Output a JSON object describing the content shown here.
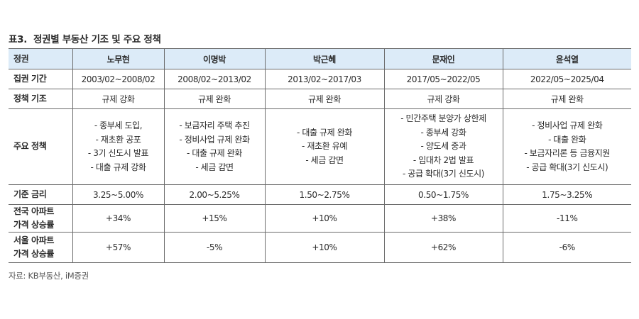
{
  "title": {
    "number": "표3.",
    "text": "정권별 부동산 기조 및 주요 정책"
  },
  "table": {
    "corner_header": "정권",
    "administrations": [
      "노무현",
      "이명박",
      "박근혜",
      "문재인",
      "윤석열"
    ],
    "rows": {
      "period": {
        "label": "집권 기간",
        "values": [
          "2003/02~2008/02",
          "2008/02~2013/02",
          "2013/02~2017/03",
          "2017/05~2022/05",
          "2022/05~2025/04"
        ]
      },
      "basis": {
        "label": "정책 기조",
        "values": [
          "규제 강화",
          "규제 완화",
          "규제 완화",
          "규제 강화",
          "규제 완화"
        ]
      },
      "policies": {
        "label": "주요 정책",
        "values": [
          [
            "- 종부세 도입,",
            "- 재초환 공포",
            "- 3기 신도시 발표",
            "- 대출 규제 강화"
          ],
          [
            "- 보금자리 주택 추진",
            "- 정비사업 규제 완화",
            "- 대출 규제 완화",
            "- 세금 감면"
          ],
          [
            "- 대출 규제 완화",
            "- 재초환 유예",
            "- 세금 감면"
          ],
          [
            "- 민간주택 분양가 상한제",
            "- 종부세 강화",
            "- 양도세 중과",
            "- 임대차 2법 발표",
            "- 공급 확대(3기 신도시)"
          ],
          [
            "- 정비사업 규제 완화",
            "- 대출 완화",
            "- 보금자리론 등 금융지원",
            "- 공급 확대(3기 신도시)"
          ]
        ]
      },
      "rate": {
        "label": "기준 금리",
        "values": [
          "3.25~5.00%",
          "2.00~5.25%",
          "1.50~2.75%",
          "0.50~1.75%",
          "1.75~3.25%"
        ]
      },
      "national": {
        "label_line1": "전국 아파트",
        "label_line2": "가격 상승률",
        "values": [
          "+34%",
          "+15%",
          "+10%",
          "+38%",
          "-11%"
        ]
      },
      "seoul": {
        "label_line1": "서울 아파트",
        "label_line2": "가격 상승률",
        "values": [
          "+57%",
          "-5%",
          "+10%",
          "+62%",
          "-6%"
        ]
      }
    }
  },
  "source": "자료: KB부동산, iM증권",
  "colors": {
    "header_bg": "#dcebf8",
    "border": "#6b6b6b",
    "text": "#2a2a2a"
  }
}
